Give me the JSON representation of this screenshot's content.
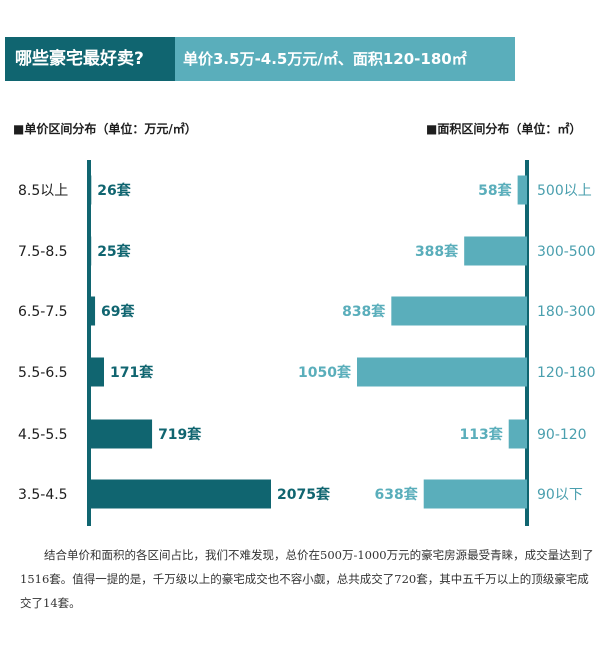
{
  "header": {
    "question": "哪些豪宅最好卖?",
    "answer": "单价3.5万-4.5万元/㎡、面积120-180㎡"
  },
  "colors": {
    "dark_teal": "#106570",
    "light_teal": "#5aaebb",
    "axis": "#106570",
    "left_label": "#1e1e1e",
    "right_label": "#4a9fae"
  },
  "chart_data": [
    {
      "type": "bar",
      "orientation": "horizontal",
      "title": "■单价区间分布（单位：万元/㎡）",
      "categories": [
        "8.5以上",
        "7.5-8.5",
        "6.5-7.5",
        "5.5-6.5",
        "4.5-5.5",
        "3.5-4.5"
      ],
      "values": [
        26,
        25,
        69,
        171,
        719,
        2075
      ],
      "value_labels": [
        "26套",
        "25套",
        "69套",
        "171套",
        "719套",
        "2075套"
      ],
      "xlim": [
        0,
        2075
      ],
      "grid": false
    },
    {
      "type": "bar",
      "orientation": "horizontal",
      "title": "■面积区间分布（单位：㎡）",
      "categories": [
        "500以上",
        "300-500",
        "180-300",
        "120-180",
        "90-120",
        "90以下"
      ],
      "values": [
        58,
        388,
        838,
        1050,
        113,
        638
      ],
      "value_labels": [
        "58套",
        "388套",
        "838套",
        "1050套",
        "113套",
        "638套"
      ],
      "xlim": [
        0,
        1050
      ],
      "grid": false
    }
  ],
  "footer": {
    "text": "结合单价和面积的各区间占比，我们不难发现，总价在500万-1000万元的豪宅房源最受青睐，成交量达到了1516套。值得一提的是，千万级以上的豪宅成交也不容小觑，总共成交了720套，其中五千万以上的顶级豪宅成交了14套。"
  }
}
